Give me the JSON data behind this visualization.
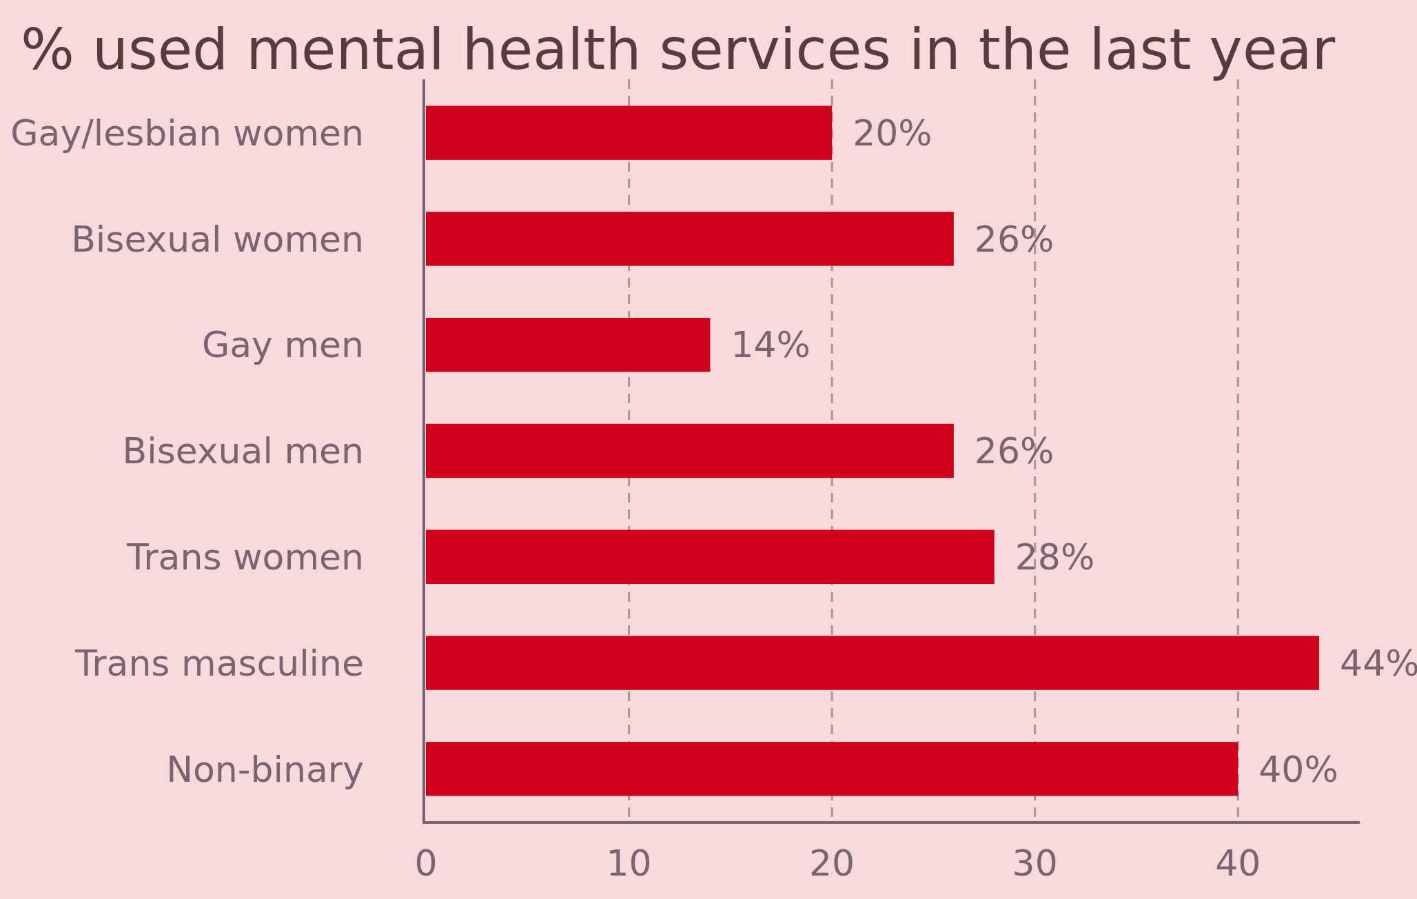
{
  "chart_data": {
    "type": "bar",
    "orientation": "horizontal",
    "title": "% used mental health services in the last year",
    "categories": [
      "Gay/lesbian women",
      "Bisexual women",
      "Gay men",
      "Bisexual men",
      "Trans women",
      "Trans masculine",
      "Non-binary"
    ],
    "values": [
      20,
      26,
      14,
      26,
      28,
      44,
      40
    ],
    "value_labels": [
      "20%",
      "26%",
      "14%",
      "26%",
      "28%",
      "44%",
      "40%"
    ],
    "color": "#d0021b",
    "xlim": [
      0,
      46
    ],
    "xticks": [
      0,
      10,
      20,
      30,
      40
    ],
    "grid": "x"
  }
}
